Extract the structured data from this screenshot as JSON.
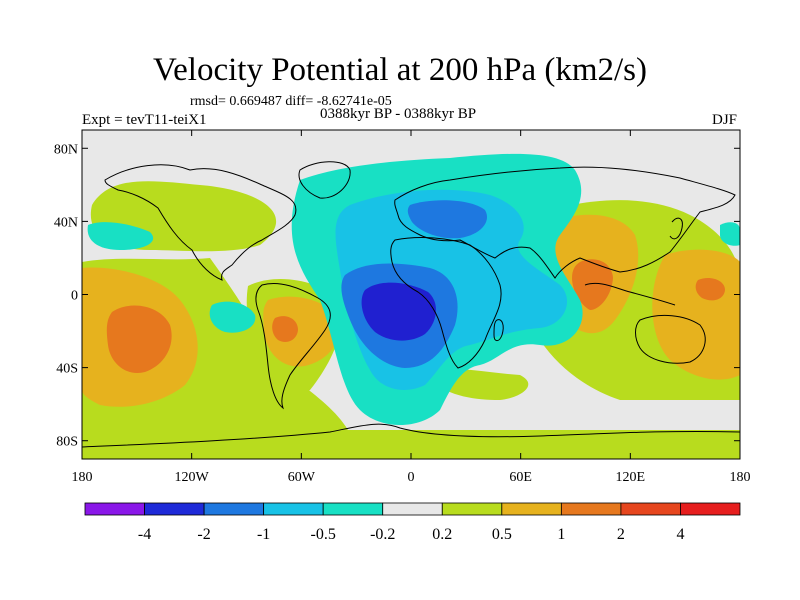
{
  "title": "Velocity Potential at 200 hPa (km2/s)",
  "stats": "rmsd= 0.669487 diff= -8.62741e-05",
  "experiment": "Expt = tevT11-teiX1",
  "period": "0388kyr BP - 0388kyr BP",
  "season": "DJF",
  "lat_labels": [
    "80N",
    "40N",
    "0",
    "40S",
    "80S"
  ],
  "lat_values": [
    80,
    40,
    0,
    -40,
    -80
  ],
  "lon_labels": [
    "180",
    "120W",
    "60W",
    "0",
    "60E",
    "120E",
    "180"
  ],
  "lon_values": [
    -180,
    -120,
    -60,
    0,
    60,
    120,
    180
  ],
  "colorbar": {
    "labels": [
      "-4",
      "-2",
      "-1",
      "-0.5",
      "-0.2",
      "0.2",
      "0.5",
      "1",
      "2",
      "4"
    ],
    "colors": [
      "#8a17e8",
      "#1e2ad8",
      "#1e78e0",
      "#18c2e6",
      "#18e0c4",
      "#e8e8e8",
      "#b8dc1e",
      "#e6b21e",
      "#e6781e",
      "#e6461e",
      "#e61e1e"
    ]
  },
  "colors": {
    "neg_strong": "#2020d0",
    "neg_mid": "#1e78e0",
    "neg_light": "#18c2e6",
    "neg_weak": "#18e0c4",
    "neutral": "#e8e8e8",
    "pos_weak": "#b8dc1e",
    "pos_mid": "#e6b21e",
    "pos_strong": "#e6781e"
  }
}
